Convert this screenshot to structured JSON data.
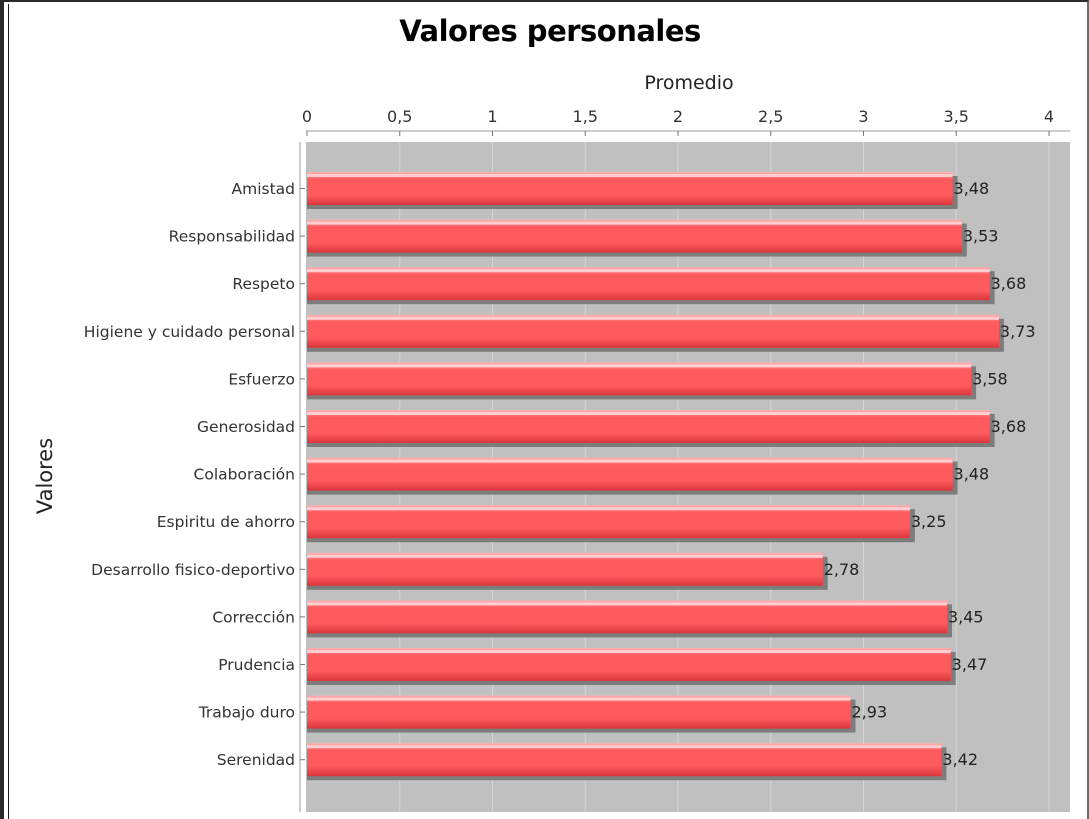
{
  "chart_data": {
    "type": "bar",
    "orientation": "horizontal",
    "title": "Valores personales",
    "xlabel": "Promedio",
    "ylabel": "Valores",
    "xlim": [
      0,
      4.1
    ],
    "x_ticks": [
      0,
      0.5,
      1,
      1.5,
      2,
      2.5,
      3,
      3.5,
      4
    ],
    "x_tick_labels": [
      "0",
      "0,5",
      "1",
      "1,5",
      "2",
      "2,5",
      "3",
      "3,5",
      "4"
    ],
    "axis_position": "top",
    "grid": true,
    "categories": [
      "Amistad",
      "Responsabilidad",
      "Respeto",
      "Higiene y cuidado personal",
      "Esfuerzo",
      "Generosidad",
      "Colaboración",
      "Espiritu de ahorro",
      "Desarrollo fisico-deportivo",
      "Corrección",
      "Prudencia",
      "Trabajo duro",
      "Serenidad"
    ],
    "values": [
      3.48,
      3.53,
      3.68,
      3.73,
      3.58,
      3.68,
      3.48,
      3.25,
      2.78,
      3.45,
      3.47,
      2.93,
      3.42
    ],
    "value_labels": [
      "3,48",
      "3,53",
      "3,68",
      "3,73",
      "3,58",
      "3,68",
      "3,48",
      "3,25",
      "2,78",
      "3,45",
      "3,47",
      "2,93",
      "3,42"
    ],
    "colors": {
      "bar": "#ff5a5e",
      "bar_highlight": "#ffb3b5",
      "bar_dark": "#d9363b",
      "bar_shadow": "#7d7d7d",
      "plot_background": "#c0c0c0",
      "gridline": "#d4d4d4"
    }
  }
}
